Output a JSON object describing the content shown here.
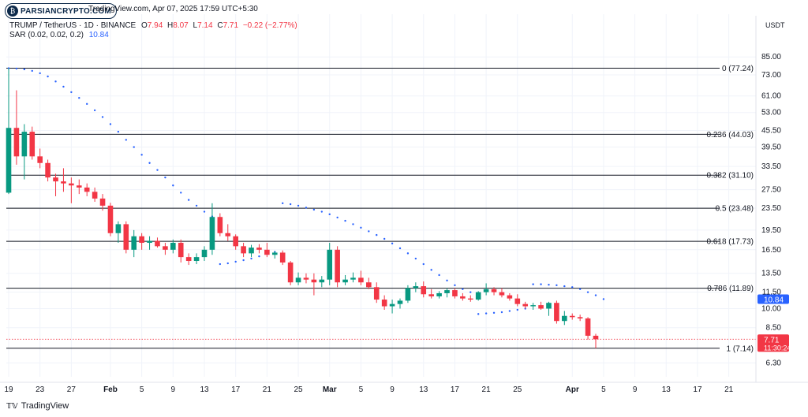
{
  "header": {
    "source_line": "TradingView.com, Apr 07, 2025 17:59 UTC+5:30",
    "symbol": "TRUMP / TetherUS · 1D · BINANCE",
    "o_label": "O",
    "o": "7.94",
    "h_label": "H",
    "h": "8.07",
    "l_label": "L",
    "l": "7.14",
    "c_label": "C",
    "c": "7.71",
    "change": "−0.22 (−2.77%)",
    "indicator": "SAR (0.02, 0.02, 0.2)",
    "indicator_value": "10.84"
  },
  "watermark": {
    "text": "PARSIANCRYPTO.COM",
    "icon": "bitcoin-icon"
  },
  "footer": {
    "brand": "TradingView",
    "icon": "tradingview-logo-icon"
  },
  "chart_data": {
    "type": "candlestick",
    "scale": "log",
    "y_unit": "USDT",
    "ylim": [
      5.6,
      100
    ],
    "y_ticks": [
      85.0,
      73.0,
      61.0,
      53.0,
      45.5,
      39.5,
      33.5,
      27.5,
      23.5,
      19.5,
      16.5,
      13.5,
      11.5,
      10.0,
      8.5,
      6.3
    ],
    "x_ticks": [
      {
        "day": 0,
        "label": "19"
      },
      {
        "day": 4,
        "label": "23"
      },
      {
        "day": 8,
        "label": "27"
      },
      {
        "day": 13,
        "label": "Feb"
      },
      {
        "day": 17,
        "label": "5"
      },
      {
        "day": 21,
        "label": "9"
      },
      {
        "day": 25,
        "label": "13"
      },
      {
        "day": 29,
        "label": "17"
      },
      {
        "day": 33,
        "label": "21"
      },
      {
        "day": 37,
        "label": "25"
      },
      {
        "day": 41,
        "label": "Mar"
      },
      {
        "day": 45,
        "label": "5"
      },
      {
        "day": 49,
        "label": "9"
      },
      {
        "day": 53,
        "label": "13"
      },
      {
        "day": 57,
        "label": "17"
      },
      {
        "day": 61,
        "label": "21"
      },
      {
        "day": 65,
        "label": "25"
      },
      {
        "day": 72,
        "label": "Apr"
      },
      {
        "day": 76,
        "label": "5"
      },
      {
        "day": 80,
        "label": "9"
      },
      {
        "day": 84,
        "label": "13"
      },
      {
        "day": 88,
        "label": "17"
      },
      {
        "day": 92,
        "label": "21"
      }
    ],
    "candles": [
      [
        26.8,
        77.2,
        26.5,
        46.5
      ],
      [
        46.5,
        64.0,
        34.0,
        36.5
      ],
      [
        36.5,
        48.0,
        30.0,
        45.0
      ],
      [
        45.0,
        47.0,
        35.5,
        36.5
      ],
      [
        36.5,
        39.0,
        33.0,
        34.5
      ],
      [
        34.5,
        35.5,
        29.5,
        30.5
      ],
      [
        30.5,
        31.5,
        26.0,
        29.5
      ],
      [
        29.5,
        33.0,
        27.0,
        29.0
      ],
      [
        29.0,
        30.5,
        24.5,
        28.5
      ],
      [
        28.5,
        30.0,
        26.5,
        28.0
      ],
      [
        28.0,
        29.0,
        26.0,
        27.0
      ],
      [
        27.0,
        28.0,
        24.8,
        25.5
      ],
      [
        25.5,
        26.5,
        23.0,
        24.0
      ],
      [
        24.0,
        24.6,
        18.5,
        19.0
      ],
      [
        19.0,
        21.0,
        17.5,
        20.5
      ],
      [
        20.5,
        21.0,
        16.0,
        16.5
      ],
      [
        16.5,
        19.5,
        15.5,
        18.5
      ],
      [
        18.5,
        19.0,
        16.5,
        17.5
      ],
      [
        17.5,
        18.5,
        16.5,
        17.8
      ],
      [
        17.8,
        18.3,
        16.8,
        17.0
      ],
      [
        17.0,
        17.5,
        15.8,
        16.5
      ],
      [
        16.5,
        18.0,
        16.0,
        17.5
      ],
      [
        17.5,
        18.0,
        14.8,
        15.5
      ],
      [
        15.5,
        16.0,
        14.5,
        15.0
      ],
      [
        15.0,
        16.0,
        14.6,
        15.5
      ],
      [
        15.5,
        17.0,
        15.0,
        16.5
      ],
      [
        16.5,
        24.5,
        15.8,
        21.8
      ],
      [
        21.8,
        22.5,
        18.5,
        19.0
      ],
      [
        19.0,
        20.5,
        17.8,
        18.5
      ],
      [
        18.5,
        18.8,
        16.5,
        17.0
      ],
      [
        17.0,
        17.5,
        15.5,
        16.0
      ],
      [
        16.0,
        17.2,
        15.5,
        16.8
      ],
      [
        16.8,
        17.3,
        16.0,
        16.5
      ],
      [
        16.5,
        17.5,
        15.5,
        15.8
      ],
      [
        15.8,
        16.3,
        15.3,
        16.1
      ],
      [
        16.1,
        16.4,
        14.5,
        14.8
      ],
      [
        14.8,
        15.0,
        12.2,
        12.5
      ],
      [
        12.5,
        13.6,
        12.2,
        13.0
      ],
      [
        13.0,
        13.5,
        12.4,
        12.8
      ],
      [
        12.8,
        13.5,
        11.2,
        12.5
      ],
      [
        12.5,
        13.2,
        12.0,
        12.8
      ],
      [
        12.8,
        17.5,
        12.2,
        16.5
      ],
      [
        16.5,
        17.0,
        12.0,
        12.5
      ],
      [
        12.5,
        13.3,
        12.2,
        12.8
      ],
      [
        12.8,
        13.6,
        12.5,
        13.0
      ],
      [
        13.0,
        13.8,
        12.2,
        12.5
      ],
      [
        12.5,
        13.0,
        11.8,
        12.0
      ],
      [
        12.0,
        12.5,
        10.5,
        10.8
      ],
      [
        10.8,
        11.2,
        9.9,
        10.2
      ],
      [
        10.2,
        10.8,
        9.6,
        10.4
      ],
      [
        10.4,
        10.9,
        10.0,
        10.7
      ],
      [
        10.7,
        12.2,
        10.5,
        11.9
      ],
      [
        11.9,
        12.5,
        11.5,
        12.1
      ],
      [
        12.1,
        12.6,
        11.0,
        11.3
      ],
      [
        11.3,
        11.8,
        10.9,
        11.1
      ],
      [
        11.1,
        11.6,
        10.9,
        11.4
      ],
      [
        11.4,
        11.9,
        11.0,
        11.7
      ],
      [
        11.7,
        11.9,
        10.9,
        11.1
      ],
      [
        11.1,
        11.4,
        10.7,
        10.9
      ],
      [
        10.9,
        11.2,
        10.6,
        10.8
      ],
      [
        10.8,
        11.6,
        10.7,
        11.5
      ],
      [
        11.5,
        12.4,
        11.2,
        11.8
      ],
      [
        11.8,
        12.0,
        11.2,
        11.5
      ],
      [
        11.5,
        11.9,
        11.0,
        11.2
      ],
      [
        11.2,
        11.4,
        10.7,
        10.9
      ],
      [
        10.9,
        11.3,
        10.2,
        10.4
      ],
      [
        10.4,
        10.6,
        10.0,
        10.2
      ],
      [
        10.2,
        10.5,
        9.9,
        10.3
      ],
      [
        10.3,
        10.6,
        9.9,
        10.0
      ],
      [
        10.0,
        10.6,
        9.4,
        10.5
      ],
      [
        10.5,
        10.7,
        8.8,
        9.0
      ],
      [
        9.0,
        9.8,
        8.7,
        9.4
      ],
      [
        9.4,
        9.6,
        9.1,
        9.3
      ],
      [
        9.3,
        9.5,
        9.0,
        9.2
      ],
      [
        9.2,
        9.3,
        7.7,
        7.94
      ],
      [
        7.94,
        8.07,
        7.14,
        7.71
      ]
    ],
    "sar": [
      [
        0,
        77.2
      ],
      [
        1,
        77.0
      ],
      [
        2,
        76.5
      ],
      [
        3,
        75.5
      ],
      [
        4,
        74.0
      ],
      [
        5,
        72.0
      ],
      [
        6,
        69.0
      ],
      [
        7,
        66.0
      ],
      [
        8,
        63.0
      ],
      [
        9,
        60.0
      ],
      [
        10,
        57.0
      ],
      [
        11,
        54.0
      ],
      [
        12,
        51.0
      ],
      [
        13,
        48.0
      ],
      [
        14,
        45.0
      ],
      [
        15,
        42.0
      ],
      [
        16,
        39.5
      ],
      [
        17,
        37.0
      ],
      [
        18,
        34.5
      ],
      [
        19,
        32.5
      ],
      [
        20,
        30.5
      ],
      [
        21,
        28.5
      ],
      [
        22,
        26.8
      ],
      [
        23,
        25.2
      ],
      [
        24,
        24.0
      ],
      [
        25,
        22.8
      ],
      [
        26,
        21.9
      ],
      [
        27,
        14.6
      ],
      [
        28,
        14.7
      ],
      [
        29,
        14.9
      ],
      [
        30,
        15.1
      ],
      [
        31,
        15.3
      ],
      [
        32,
        15.6
      ],
      [
        33,
        15.9
      ],
      [
        34,
        16.2
      ],
      [
        35,
        24.5
      ],
      [
        36,
        24.3
      ],
      [
        37,
        24.0
      ],
      [
        38,
        23.6
      ],
      [
        39,
        23.2
      ],
      [
        40,
        22.8
      ],
      [
        41,
        22.3
      ],
      [
        42,
        21.7
      ],
      [
        43,
        21.1
      ],
      [
        44,
        20.5
      ],
      [
        45,
        19.9
      ],
      [
        46,
        19.3
      ],
      [
        47,
        18.7
      ],
      [
        48,
        18.1
      ],
      [
        49,
        17.4
      ],
      [
        50,
        16.7
      ],
      [
        51,
        16.0
      ],
      [
        52,
        15.3
      ],
      [
        53,
        14.6
      ],
      [
        54,
        13.9
      ],
      [
        55,
        13.3
      ],
      [
        56,
        12.7
      ],
      [
        57,
        12.2
      ],
      [
        58,
        11.8
      ],
      [
        59,
        11.5
      ],
      [
        60,
        9.55
      ],
      [
        61,
        9.6
      ],
      [
        62,
        9.65
      ],
      [
        63,
        9.7
      ],
      [
        64,
        9.8
      ],
      [
        65,
        9.9
      ],
      [
        66,
        10.0
      ],
      [
        67,
        12.3
      ],
      [
        68,
        12.3
      ],
      [
        69,
        12.25
      ],
      [
        70,
        12.2
      ],
      [
        71,
        12.1
      ],
      [
        72,
        12.0
      ],
      [
        73,
        11.8
      ],
      [
        74,
        11.5
      ],
      [
        75,
        11.2
      ],
      [
        76,
        10.84
      ]
    ],
    "fib_levels": [
      {
        "label": "0 (77.24)",
        "value": 77.24
      },
      {
        "label": "0.236 (44.03)",
        "value": 44.03
      },
      {
        "label": "0.382 (31.10)",
        "value": 31.1
      },
      {
        "label": "0.5 (23.48)",
        "value": 23.48
      },
      {
        "label": "0.618 (17.73)",
        "value": 17.73
      },
      {
        "label": "0.786 (11.89)",
        "value": 11.89
      },
      {
        "label": "1 (7.14)",
        "value": 7.14
      }
    ],
    "price_tags": [
      {
        "value": 10.84,
        "text": "10.84",
        "color": "#2962ff"
      },
      {
        "value": 7.71,
        "text": "7.71",
        "subtext": "11:30:24",
        "color": "#f23645"
      }
    ],
    "colors": {
      "up": "#089981",
      "down": "#f23645",
      "sar": "#2962ff",
      "fib": "#131722",
      "grid": "#f0f3fa"
    }
  }
}
